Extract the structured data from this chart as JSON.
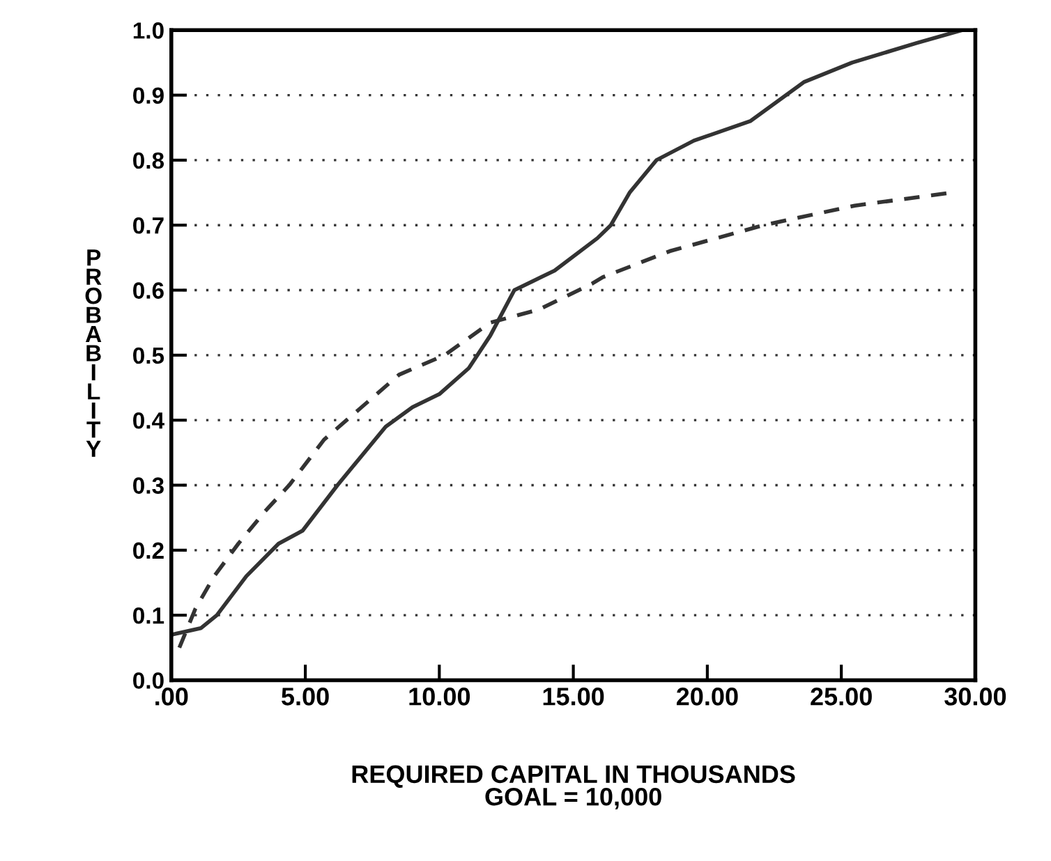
{
  "chart_data": {
    "type": "line",
    "xlabel": "REQUIRED CAPITAL IN THOUSANDS\nGOAL = 10,000",
    "ylabel": "PROBABILITY",
    "xlim": [
      0,
      30
    ],
    "ylim": [
      0,
      1
    ],
    "xticks": [
      {
        "value": 0,
        "label": ".00"
      },
      {
        "value": 5,
        "label": "5.00"
      },
      {
        "value": 10,
        "label": "10.00"
      },
      {
        "value": 15,
        "label": "15.00"
      },
      {
        "value": 20,
        "label": "20.00"
      },
      {
        "value": 25,
        "label": "25.00"
      },
      {
        "value": 30,
        "label": "30.00"
      }
    ],
    "yticks": [
      {
        "value": 0,
        "label": "0.0"
      },
      {
        "value": 0.1,
        "label": "0.1"
      },
      {
        "value": 0.2,
        "label": "0.2"
      },
      {
        "value": 0.3,
        "label": "0.3"
      },
      {
        "value": 0.4,
        "label": "0.4"
      },
      {
        "value": 0.5,
        "label": "0.5"
      },
      {
        "value": 0.6,
        "label": "0.6"
      },
      {
        "value": 0.7,
        "label": "0.7"
      },
      {
        "value": 0.8,
        "label": "0.8"
      },
      {
        "value": 0.9,
        "label": "0.9"
      },
      {
        "value": 1,
        "label": "1.0"
      }
    ],
    "grid": "y",
    "series": [
      {
        "color": "#333333",
        "line_style": "solid",
        "x": [
          0,
          1.1,
          1.7,
          2.8,
          4.0,
          4.9,
          6.2,
          8.0,
          9.0,
          10.0,
          11.1,
          11.9,
          12.8,
          13.8,
          14.3,
          15.9,
          16.4,
          17.1,
          18.1,
          19.5,
          21.6,
          23.6,
          25.4,
          27.8,
          29.5
        ],
        "values": [
          0.07,
          0.08,
          0.1,
          0.16,
          0.21,
          0.23,
          0.3,
          0.39,
          0.42,
          0.44,
          0.48,
          0.53,
          0.6,
          0.62,
          0.63,
          0.68,
          0.7,
          0.75,
          0.8,
          0.83,
          0.86,
          0.92,
          0.95,
          0.98,
          1.0
        ]
      },
      {
        "color": "#333333",
        "line_style": "dashed",
        "x": [
          0.3,
          0.9,
          1.6,
          2.5,
          3.5,
          4.4,
          5.7,
          7.1,
          8.5,
          10.2,
          11.9,
          13.7,
          15.7,
          16.1,
          18.6,
          22.1,
          25.5,
          29.1
        ],
        "values": [
          0.05,
          0.11,
          0.16,
          0.21,
          0.26,
          0.3,
          0.37,
          0.42,
          0.47,
          0.5,
          0.55,
          0.57,
          0.61,
          0.62,
          0.66,
          0.7,
          0.73,
          0.75
        ]
      }
    ]
  }
}
